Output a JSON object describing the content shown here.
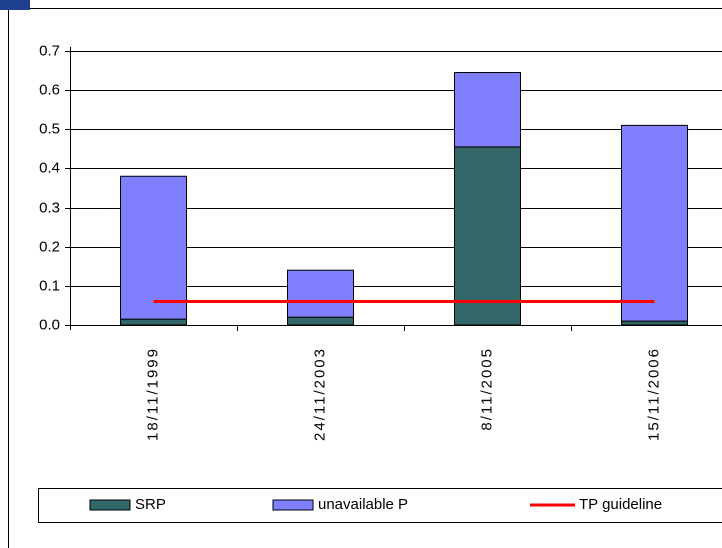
{
  "chart_data": {
    "type": "stacked-bar-line",
    "categories": [
      "18/11/1999",
      "24/11/2003",
      "8/11/2005",
      "15/11/2006"
    ],
    "series": [
      {
        "name": "SRP",
        "color": "#336666",
        "kind": "bar",
        "values": [
          0.015,
          0.02,
          0.455,
          0.01
        ]
      },
      {
        "name": "unavailable P",
        "color": "#8080ff",
        "kind": "bar",
        "values": [
          0.365,
          0.12,
          0.19,
          0.5
        ]
      },
      {
        "name": "TP guideline",
        "color": "#ff0000",
        "kind": "line",
        "values": [
          0.06,
          0.06,
          0.06,
          0.06
        ]
      }
    ],
    "ylim": [
      0,
      0.7
    ],
    "yticks": [
      {
        "value": 0,
        "label": "0.0"
      },
      0.1,
      0.2,
      0.3,
      0.4,
      0.5,
      0.6,
      0.7
    ],
    "grid": true,
    "legend": "bottom"
  }
}
